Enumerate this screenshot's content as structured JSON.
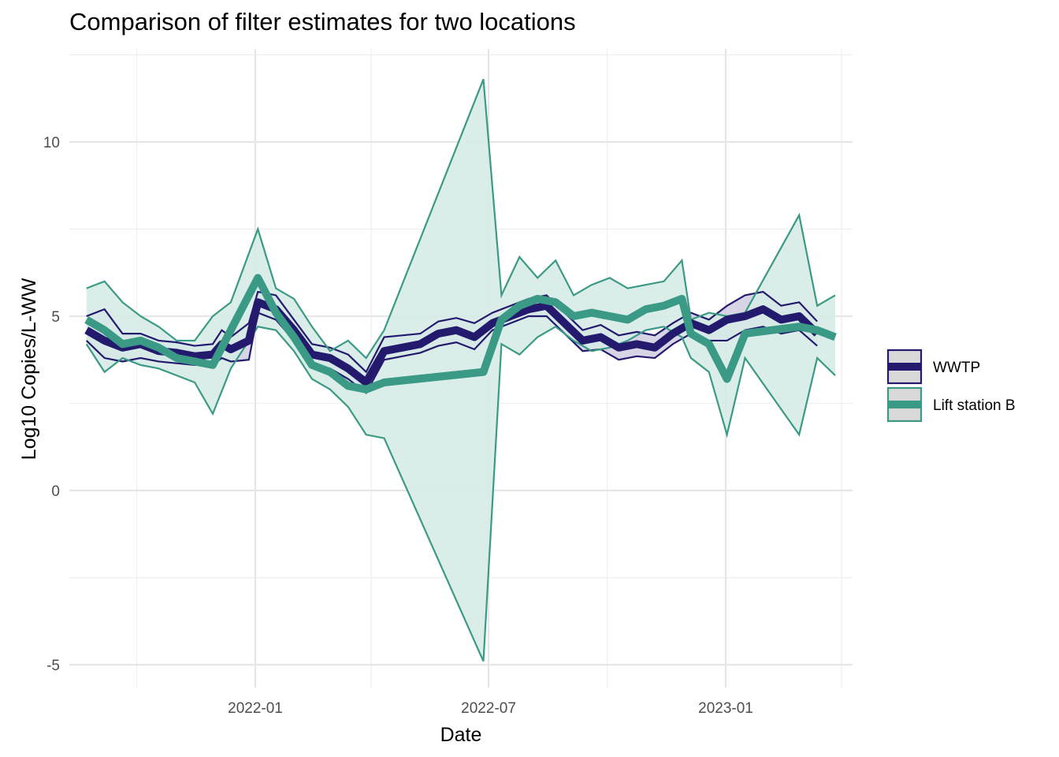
{
  "chart_data": {
    "type": "line",
    "title": "Comparison of filter estimates for two locations",
    "xlabel": "Date",
    "ylabel": "Log10 Copies/L-WW",
    "ylim": [
      -5.6,
      12.6
    ],
    "xlim": [
      "2021-08-01",
      "2023-04-10"
    ],
    "x_ticks": [
      "2022-01-01",
      "2022-07-01",
      "2023-01-01"
    ],
    "x_tick_labels": [
      "2022-01",
      "2022-07",
      "2023-01"
    ],
    "x_minor_ticks": [
      "2021-10-01",
      "2022-04-01",
      "2022-10-01",
      "2023-04-01"
    ],
    "y_ticks": [
      -5,
      0,
      5,
      10
    ],
    "y_tick_labels": [
      "-5",
      "0",
      "5",
      "10"
    ],
    "grid": true,
    "legend_position": "right",
    "series": [
      {
        "name": "WWTP",
        "color": "#231a6e",
        "fill": "#c9c5de",
        "x": [
          "2021-08-23",
          "2021-09-06",
          "2021-09-20",
          "2021-10-04",
          "2021-10-18",
          "2021-11-01",
          "2021-11-15",
          "2021-11-29",
          "2021-12-06",
          "2021-12-13",
          "2021-12-27",
          "2022-01-03",
          "2022-01-17",
          "2022-01-31",
          "2022-02-14",
          "2022-02-28",
          "2022-03-14",
          "2022-03-28",
          "2022-04-11",
          "2022-04-25",
          "2022-05-09",
          "2022-05-23",
          "2022-06-06",
          "2022-06-20",
          "2022-07-04",
          "2022-07-18",
          "2022-08-01",
          "2022-08-15",
          "2022-08-29",
          "2022-09-12",
          "2022-09-26",
          "2022-10-10",
          "2022-10-24",
          "2022-11-07",
          "2022-11-21",
          "2022-12-05",
          "2022-12-19",
          "2023-01-02",
          "2023-01-16",
          "2023-01-30",
          "2023-02-13",
          "2023-02-27",
          "2023-03-13"
        ],
        "mean": [
          4.6,
          4.3,
          4.1,
          4.2,
          4.0,
          3.95,
          3.85,
          3.9,
          4.2,
          4.05,
          4.3,
          5.4,
          5.2,
          4.6,
          3.9,
          3.8,
          3.5,
          3.1,
          4.0,
          4.1,
          4.2,
          4.5,
          4.6,
          4.4,
          4.8,
          5.0,
          5.2,
          5.3,
          4.8,
          4.3,
          4.4,
          4.1,
          4.2,
          4.1,
          4.5,
          4.8,
          4.6,
          4.9,
          5.0,
          5.2,
          4.9,
          5.0,
          4.5
        ],
        "lower": [
          4.3,
          3.8,
          3.7,
          3.8,
          3.7,
          3.65,
          3.6,
          3.6,
          3.8,
          3.7,
          3.75,
          5.1,
          4.9,
          4.3,
          3.6,
          3.5,
          3.2,
          2.8,
          3.75,
          3.85,
          3.95,
          4.15,
          4.25,
          4.05,
          4.6,
          4.8,
          5.0,
          5.0,
          4.5,
          4.0,
          4.05,
          3.75,
          3.85,
          3.8,
          4.2,
          4.5,
          4.3,
          4.3,
          4.6,
          4.7,
          4.5,
          4.6,
          4.15
        ],
        "upper": [
          5.0,
          5.2,
          4.5,
          4.5,
          4.3,
          4.25,
          4.15,
          4.2,
          4.6,
          4.4,
          4.8,
          5.7,
          5.6,
          4.9,
          4.2,
          4.1,
          3.9,
          3.4,
          4.4,
          4.45,
          4.5,
          4.85,
          4.95,
          4.8,
          5.1,
          5.3,
          5.5,
          5.6,
          5.1,
          4.6,
          4.75,
          4.45,
          4.55,
          4.45,
          4.8,
          5.1,
          4.9,
          5.3,
          5.6,
          5.7,
          5.3,
          5.4,
          4.85
        ]
      },
      {
        "name": "Lift station B",
        "color": "#3a9a86",
        "fill": "#d6ebe6",
        "x": [
          "2021-08-23",
          "2021-09-06",
          "2021-09-20",
          "2021-10-04",
          "2021-10-18",
          "2021-11-01",
          "2021-11-15",
          "2021-11-29",
          "2021-12-13",
          "2022-01-03",
          "2022-01-17",
          "2022-01-31",
          "2022-02-14",
          "2022-02-28",
          "2022-03-14",
          "2022-03-28",
          "2022-04-11",
          "2022-06-27",
          "2022-07-11",
          "2022-07-25",
          "2022-08-08",
          "2022-08-22",
          "2022-09-05",
          "2022-09-19",
          "2022-10-03",
          "2022-10-17",
          "2022-10-31",
          "2022-11-14",
          "2022-11-28",
          "2022-12-05",
          "2022-12-19",
          "2023-01-02",
          "2023-01-16",
          "2023-02-27",
          "2023-03-13",
          "2023-03-27"
        ],
        "mean": [
          4.9,
          4.6,
          4.2,
          4.3,
          4.1,
          3.8,
          3.7,
          3.6,
          4.6,
          6.1,
          5.1,
          4.4,
          3.6,
          3.4,
          3.0,
          2.9,
          3.1,
          3.4,
          4.9,
          5.3,
          5.5,
          5.4,
          5.0,
          5.1,
          5.0,
          4.9,
          5.2,
          5.3,
          5.5,
          4.5,
          4.2,
          3.2,
          4.5,
          4.7,
          4.6,
          4.4
        ],
        "lower": [
          4.2,
          3.4,
          3.8,
          3.6,
          3.5,
          3.3,
          3.1,
          2.2,
          3.5,
          4.7,
          4.6,
          4.0,
          3.2,
          2.9,
          2.4,
          1.6,
          1.5,
          -4.9,
          4.2,
          3.9,
          4.4,
          4.7,
          4.3,
          4.0,
          4.1,
          4.3,
          4.6,
          4.7,
          4.4,
          3.8,
          3.4,
          1.6,
          3.8,
          1.6,
          3.8,
          3.3
        ],
        "upper": [
          5.8,
          6.0,
          5.4,
          5.0,
          4.7,
          4.3,
          4.3,
          5.0,
          5.4,
          7.5,
          5.8,
          5.5,
          4.7,
          4.0,
          4.3,
          3.8,
          4.6,
          11.8,
          5.6,
          6.7,
          6.1,
          6.6,
          5.6,
          5.9,
          6.1,
          5.8,
          5.9,
          6.0,
          6.6,
          4.9,
          5.1,
          5.0,
          5.1,
          7.9,
          5.3,
          5.6
        ]
      }
    ]
  }
}
